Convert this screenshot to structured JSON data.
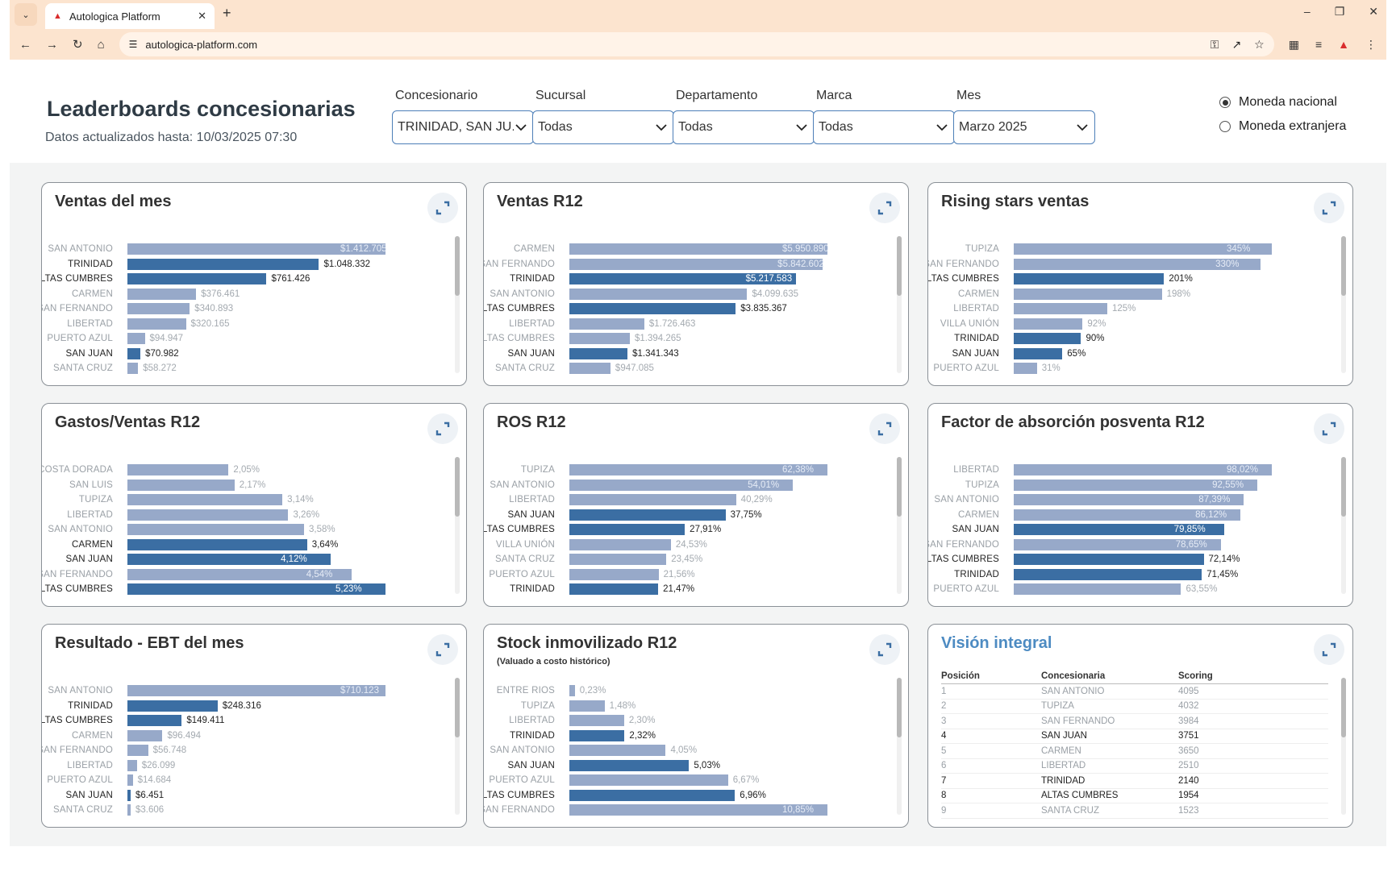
{
  "browser": {
    "tab_title": "Autologica Platform",
    "url": "autologica-platform.com"
  },
  "header": {
    "title": "Leaderboards concesionarias",
    "subtitle": "Datos actualizados hasta: 10/03/2025 07:30"
  },
  "filters": [
    {
      "label": "Concesionario",
      "value": "TRINIDAD, SAN JU..."
    },
    {
      "label": "Sucursal",
      "value": "Todas"
    },
    {
      "label": "Departamento",
      "value": "Todas"
    },
    {
      "label": "Marca",
      "value": "Todas"
    },
    {
      "label": "Mes",
      "value": "Marzo 2025"
    }
  ],
  "currency": {
    "options": [
      "Moneda nacional",
      "Moneda extranjera"
    ],
    "selected": "Moneda nacional"
  },
  "colors": {
    "bar": "#97a9c9",
    "bar_highlight": "#3b6ea3",
    "accent": "#4d8bc2"
  },
  "cards": [
    {
      "title": "Ventas del mes",
      "subtitle": "",
      "rows": [
        {
          "label": "SAN ANTONIO",
          "value": 1412705,
          "text": "$1.412.705",
          "hl": false
        },
        {
          "label": "TRINIDAD",
          "value": 1048332,
          "text": "$1.048.332",
          "hl": true
        },
        {
          "label": "ALTAS CUMBRES",
          "value": 761426,
          "text": "$761.426",
          "hl": true
        },
        {
          "label": "CARMEN",
          "value": 376461,
          "text": "$376.461",
          "hl": false
        },
        {
          "label": "SAN FERNANDO",
          "value": 340893,
          "text": "$340.893",
          "hl": false
        },
        {
          "label": "LIBERTAD",
          "value": 320165,
          "text": "$320.165",
          "hl": false
        },
        {
          "label": "PUERTO AZUL",
          "value": 94947,
          "text": "$94.947",
          "hl": false
        },
        {
          "label": "SAN JUAN",
          "value": 70982,
          "text": "$70.982",
          "hl": true
        },
        {
          "label": "SANTA CRUZ",
          "value": 58272,
          "text": "$58.272",
          "hl": false
        }
      ]
    },
    {
      "title": "Ventas R12",
      "subtitle": "",
      "rows": [
        {
          "label": "CARMEN",
          "value": 5950890,
          "text": "$5.950.890",
          "hl": false
        },
        {
          "label": "SAN FERNANDO",
          "value": 5842602,
          "text": "$5.842.602",
          "hl": false
        },
        {
          "label": "TRINIDAD",
          "value": 5217583,
          "text": "$5.217.583",
          "hl": true
        },
        {
          "label": "SAN ANTONIO",
          "value": 4099635,
          "text": "$4.099.635",
          "hl": false
        },
        {
          "label": "ALTAS CUMBRES",
          "value": 3835367,
          "text": "$3.835.367",
          "hl": true
        },
        {
          "label": "LIBERTAD",
          "value": 1726463,
          "text": "$1.726.463",
          "hl": false
        },
        {
          "label": "ALTAS CUMBRES",
          "value": 1394265,
          "text": "$1.394.265",
          "hl": false
        },
        {
          "label": "SAN JUAN",
          "value": 1341343,
          "text": "$1.341.343",
          "hl": true
        },
        {
          "label": "SANTA CRUZ",
          "value": 947085,
          "text": "$947.085",
          "hl": false
        }
      ]
    },
    {
      "title": "Rising stars ventas",
      "subtitle": "",
      "rows": [
        {
          "label": "TUPIZA",
          "value": 345,
          "text": "345%",
          "hl": false
        },
        {
          "label": "SAN FERNANDO",
          "value": 330,
          "text": "330%",
          "hl": false
        },
        {
          "label": "ALTAS CUMBRES",
          "value": 201,
          "text": "201%",
          "hl": true
        },
        {
          "label": "CARMEN",
          "value": 198,
          "text": "198%",
          "hl": false
        },
        {
          "label": "LIBERTAD",
          "value": 125,
          "text": "125%",
          "hl": false
        },
        {
          "label": "VILLA UNIÓN",
          "value": 92,
          "text": "92%",
          "hl": false
        },
        {
          "label": "TRINIDAD",
          "value": 90,
          "text": "90%",
          "hl": true
        },
        {
          "label": "SAN JUAN",
          "value": 65,
          "text": "65%",
          "hl": true
        },
        {
          "label": "PUERTO AZUL",
          "value": 31,
          "text": "31%",
          "hl": false
        }
      ]
    },
    {
      "title": "Gastos/Ventas R12",
      "subtitle": "",
      "rows": [
        {
          "label": "COSTA DORADA",
          "value": 2.05,
          "text": "2,05%",
          "hl": false
        },
        {
          "label": "SAN LUIS",
          "value": 2.17,
          "text": "2,17%",
          "hl": false
        },
        {
          "label": "TUPIZA",
          "value": 3.14,
          "text": "3,14%",
          "hl": false
        },
        {
          "label": "LIBERTAD",
          "value": 3.26,
          "text": "3,26%",
          "hl": false
        },
        {
          "label": "SAN ANTONIO",
          "value": 3.58,
          "text": "3,58%",
          "hl": false
        },
        {
          "label": "CARMEN",
          "value": 3.64,
          "text": "3,64%",
          "hl": true
        },
        {
          "label": "SAN JUAN",
          "value": 4.12,
          "text": "4,12%",
          "hl": true
        },
        {
          "label": "SAN FERNANDO",
          "value": 4.54,
          "text": "4,54%",
          "hl": false
        },
        {
          "label": "ALTAS CUMBRES",
          "value": 5.23,
          "text": "5,23%",
          "hl": true
        }
      ]
    },
    {
      "title": "ROS R12",
      "subtitle": "",
      "rows": [
        {
          "label": "TUPIZA",
          "value": 62.38,
          "text": "62,38%",
          "hl": false
        },
        {
          "label": "SAN ANTONIO",
          "value": 54.01,
          "text": "54,01%",
          "hl": false
        },
        {
          "label": "LIBERTAD",
          "value": 40.29,
          "text": "40,29%",
          "hl": false
        },
        {
          "label": "SAN JUAN",
          "value": 37.75,
          "text": "37,75%",
          "hl": true
        },
        {
          "label": "ALTAS CUMBRES",
          "value": 27.91,
          "text": "27,91%",
          "hl": true
        },
        {
          "label": "VILLA UNIÓN",
          "value": 24.53,
          "text": "24,53%",
          "hl": false
        },
        {
          "label": "SANTA CRUZ",
          "value": 23.45,
          "text": "23,45%",
          "hl": false
        },
        {
          "label": "PUERTO AZUL",
          "value": 21.56,
          "text": "21,56%",
          "hl": false
        },
        {
          "label": "TRINIDAD",
          "value": 21.47,
          "text": "21,47%",
          "hl": true
        }
      ]
    },
    {
      "title": "Factor de absorción posventa R12",
      "subtitle": "",
      "rows": [
        {
          "label": "LIBERTAD",
          "value": 98.02,
          "text": "98,02%",
          "hl": false
        },
        {
          "label": "TUPIZA",
          "value": 92.55,
          "text": "92,55%",
          "hl": false
        },
        {
          "label": "SAN ANTONIO",
          "value": 87.39,
          "text": "87,39%",
          "hl": false
        },
        {
          "label": "CARMEN",
          "value": 86.12,
          "text": "86,12%",
          "hl": false
        },
        {
          "label": "SAN JUAN",
          "value": 79.85,
          "text": "79,85%",
          "hl": true
        },
        {
          "label": "SAN FERNANDO",
          "value": 78.65,
          "text": "78,65%",
          "hl": false
        },
        {
          "label": "ALTAS CUMBRES",
          "value": 72.14,
          "text": "72,14%",
          "hl": true
        },
        {
          "label": "TRINIDAD",
          "value": 71.45,
          "text": "71,45%",
          "hl": true
        },
        {
          "label": "PUERTO AZUL",
          "value": 63.55,
          "text": "63,55%",
          "hl": false
        }
      ]
    },
    {
      "title": "Resultado - EBT del mes",
      "subtitle": "",
      "rows": [
        {
          "label": "SAN ANTONIO",
          "value": 710123,
          "text": "$710.123",
          "hl": false
        },
        {
          "label": "TRINIDAD",
          "value": 248316,
          "text": "$248.316",
          "hl": true
        },
        {
          "label": "ALTAS CUMBRES",
          "value": 149411,
          "text": "$149.411",
          "hl": true
        },
        {
          "label": "CARMEN",
          "value": 96494,
          "text": "$96.494",
          "hl": false
        },
        {
          "label": "SAN FERNANDO",
          "value": 56748,
          "text": "$56.748",
          "hl": false
        },
        {
          "label": "LIBERTAD",
          "value": 26099,
          "text": "$26.099",
          "hl": false
        },
        {
          "label": "PUERTO AZUL",
          "value": 14684,
          "text": "$14.684",
          "hl": false
        },
        {
          "label": "SAN JUAN",
          "value": 6451,
          "text": "$6.451",
          "hl": true
        },
        {
          "label": "SANTA CRUZ",
          "value": 3606,
          "text": "$3.606",
          "hl": false
        }
      ]
    },
    {
      "title": "Stock inmovilizado R12",
      "subtitle": "(Valuado a costo histórico)",
      "rows": [
        {
          "label": "ENTRE RIOS",
          "value": 0.23,
          "text": "0,23%",
          "hl": false
        },
        {
          "label": "TUPIZA",
          "value": 1.48,
          "text": "1,48%",
          "hl": false
        },
        {
          "label": "LIBERTAD",
          "value": 2.3,
          "text": "2,30%",
          "hl": false
        },
        {
          "label": "TRINIDAD",
          "value": 2.32,
          "text": "2,32%",
          "hl": true
        },
        {
          "label": "SAN ANTONIO",
          "value": 4.05,
          "text": "4,05%",
          "hl": false
        },
        {
          "label": "SAN JUAN",
          "value": 5.03,
          "text": "5,03%",
          "hl": true
        },
        {
          "label": "PUERTO AZUL",
          "value": 6.67,
          "text": "6,67%",
          "hl": false
        },
        {
          "label": "ALTAS CUMBRES",
          "value": 6.96,
          "text": "6,96%",
          "hl": true
        },
        {
          "label": "SAN FERNANDO",
          "value": 10.85,
          "text": "10,85%",
          "hl": false
        }
      ]
    }
  ],
  "vision": {
    "title": "Visión integral",
    "headers": [
      "Posición",
      "Concesionaria",
      "Scoring"
    ],
    "rows": [
      {
        "pos": "1",
        "name": "SAN ANTONIO",
        "score": "4095",
        "hl": false
      },
      {
        "pos": "2",
        "name": "TUPIZA",
        "score": "4032",
        "hl": false
      },
      {
        "pos": "3",
        "name": "SAN FERNANDO",
        "score": "3984",
        "hl": false
      },
      {
        "pos": "4",
        "name": "SAN JUAN",
        "score": "3751",
        "hl": true
      },
      {
        "pos": "5",
        "name": "CARMEN",
        "score": "3650",
        "hl": false
      },
      {
        "pos": "6",
        "name": "LIBERTAD",
        "score": "2510",
        "hl": false
      },
      {
        "pos": "7",
        "name": "TRINIDAD",
        "score": "2140",
        "hl": true
      },
      {
        "pos": "8",
        "name": "ALTAS CUMBRES",
        "score": "1954",
        "hl": true
      },
      {
        "pos": "9",
        "name": "SANTA CRUZ",
        "score": "1523",
        "hl": false
      }
    ]
  }
}
